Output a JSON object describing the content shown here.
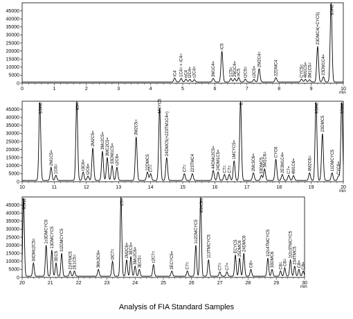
{
  "caption": "Analysis of FIA Standard Samples",
  "chart_data": [
    {
      "type": "line",
      "xunit": "min",
      "xlim": [
        0,
        10
      ],
      "xticks": [
        0,
        1,
        2,
        3,
        4,
        5,
        6,
        7,
        8,
        9,
        10
      ],
      "ylim": [
        0,
        50000
      ],
      "yticks": [
        0,
        5000,
        10000,
        15000,
        20000,
        25000,
        30000,
        35000,
        40000,
        45000
      ],
      "baseline": 800,
      "peaks": [
        {
          "x": 4.75,
          "y": 3200,
          "label": "iC4"
        },
        {
          "x": 4.95,
          "y": 3000,
          "label": "1C4= + iC4="
        },
        {
          "x": 5.1,
          "y": 2600,
          "label": "nC4"
        },
        {
          "x": 5.22,
          "y": 2400,
          "label": "t2C4="
        },
        {
          "x": 5.36,
          "y": 2200,
          "label": "c2C4="
        },
        {
          "x": 5.95,
          "y": 3000,
          "label": "3M1C4="
        },
        {
          "x": 6.22,
          "y": 20000,
          "label": "iC5"
        },
        {
          "x": 6.5,
          "y": 3000,
          "label": "1C5="
        },
        {
          "x": 6.62,
          "y": 3000,
          "label": "2M1C4="
        },
        {
          "x": 6.74,
          "y": 3500,
          "label": "nC5"
        },
        {
          "x": 6.95,
          "y": 2600,
          "label": "t2C5="
        },
        {
          "x": 7.22,
          "y": 2400,
          "label": "c2C5="
        },
        {
          "x": 7.38,
          "y": 9000,
          "label": "2M2C4="
        },
        {
          "x": 7.9,
          "y": 3500,
          "label": "22DMC4"
        },
        {
          "x": 8.7,
          "y": 2600,
          "label": "CYC5="
        },
        {
          "x": 8.82,
          "y": 2400,
          "label": "4M1C5="
        },
        {
          "x": 8.95,
          "y": 2200,
          "label": "3M1C5="
        },
        {
          "x": 9.2,
          "y": 23000,
          "label": "23DMC4(+CYC5)"
        },
        {
          "x": 9.38,
          "y": 4000,
          "label": "23DM1C4="
        },
        {
          "x": 9.62,
          "y": 50000,
          "label": "2MC5"
        }
      ]
    },
    {
      "type": "line",
      "xunit": "min",
      "xlim": [
        10,
        20
      ],
      "xticks": [
        10,
        11,
        12,
        13,
        14,
        15,
        16,
        17,
        18,
        19,
        20
      ],
      "ylim": [
        0,
        50000
      ],
      "yticks": [
        0,
        5000,
        10000,
        15000,
        20000,
        25000,
        30000,
        35000,
        40000,
        45000
      ],
      "baseline": 800,
      "peaks": [
        {
          "x": 10.55,
          "y": 50000,
          "label": "3MC5"
        },
        {
          "x": 10.9,
          "y": 9000,
          "label": "2M1C5="
        },
        {
          "x": 11.05,
          "y": 4000,
          "label": "1C6="
        },
        {
          "x": 11.7,
          "y": 50000,
          "label": "nC6"
        },
        {
          "x": 11.9,
          "y": 6000,
          "label": "t3C6="
        },
        {
          "x": 12.05,
          "y": 3500,
          "label": "t2C6="
        },
        {
          "x": 12.2,
          "y": 21000,
          "label": "2M2C5="
        },
        {
          "x": 12.5,
          "y": 19000,
          "label": "3Mc2C5="
        },
        {
          "x": 12.65,
          "y": 15000,
          "label": "3MC2C5="
        },
        {
          "x": 12.8,
          "y": 10000,
          "label": "33DM1C5="
        },
        {
          "x": 12.95,
          "y": 9000,
          "label": "c2C6="
        },
        {
          "x": 13.55,
          "y": 28000,
          "label": "3M2C5="
        },
        {
          "x": 13.9,
          "y": 6000,
          "label": "22DMC5"
        },
        {
          "x": 14.0,
          "y": 5000,
          "label": "C7="
        },
        {
          "x": 14.28,
          "y": 46000,
          "label": "MCYC5"
        },
        {
          "x": 14.5,
          "y": 15000,
          "label": "24DMC5(+223TM1C4=)"
        },
        {
          "x": 15.05,
          "y": 5000,
          "label": "C7="
        },
        {
          "x": 15.3,
          "y": 5000,
          "label": "223TMC4"
        },
        {
          "x": 15.95,
          "y": 7000,
          "label": "44DMc2C5="
        },
        {
          "x": 16.1,
          "y": 6000,
          "label": "24DM1C5="
        },
        {
          "x": 16.3,
          "y": 4500,
          "label": "C7="
        },
        {
          "x": 16.45,
          "y": 4500,
          "label": "C7="
        },
        {
          "x": 16.6,
          "y": 13000,
          "label": "1MCYC5="
        },
        {
          "x": 16.8,
          "y": 50000,
          "label": "B"
        },
        {
          "x": 17.2,
          "y": 5500,
          "label": "2Mc3C6="
        },
        {
          "x": 17.45,
          "y": 4000,
          "label": "33DMC5"
        },
        {
          "x": 17.55,
          "y": 8000,
          "label": "5M1C6="
        },
        {
          "x": 17.9,
          "y": 14000,
          "label": "CYC6"
        },
        {
          "x": 18.1,
          "y": 4500,
          "label": "2E3M1C4="
        },
        {
          "x": 18.3,
          "y": 4000,
          "label": "C7="
        },
        {
          "x": 18.45,
          "y": 3800,
          "label": "4M1C6="
        },
        {
          "x": 18.95,
          "y": 5500,
          "label": "4M2C6="
        },
        {
          "x": 19.15,
          "y": 50000,
          "label": "2MC6"
        },
        {
          "x": 19.35,
          "y": 30000,
          "label": "23DMC5"
        },
        {
          "x": 19.65,
          "y": 5500,
          "label": "11DMCYC5"
        },
        {
          "x": 19.85,
          "y": 3500,
          "label": "CYC6="
        },
        {
          "x": 19.95,
          "y": 50000,
          "label": "3MC6"
        }
      ]
    },
    {
      "type": "line",
      "xunit": "min",
      "xlim": [
        20,
        30
      ],
      "xticks": [
        20,
        21,
        22,
        23,
        24,
        25,
        26,
        27,
        28,
        29,
        30
      ],
      "ylim": [
        0,
        50000
      ],
      "yticks": [
        0,
        5000,
        10000,
        15000,
        20000,
        25000,
        30000,
        35000,
        40000,
        45000
      ],
      "baseline": 800,
      "peaks": [
        {
          "x": 20.05,
          "y": 50000,
          "label": "3MC6"
        },
        {
          "x": 20.4,
          "y": 9000,
          "label": "34DMc2C5="
        },
        {
          "x": 20.85,
          "y": 20000,
          "label": "1c3DMCYC5"
        },
        {
          "x": 21.05,
          "y": 17000,
          "label": "13DMCYC5"
        },
        {
          "x": 21.2,
          "y": 9000,
          "label": "3EC5"
        },
        {
          "x": 21.4,
          "y": 15000,
          "label": "1t2DMCYC5"
        },
        {
          "x": 21.7,
          "y": 4000,
          "label": "224TMC5"
        },
        {
          "x": 21.85,
          "y": 4000,
          "label": "2E1C5="
        },
        {
          "x": 22.7,
          "y": 5000,
          "label": "3Mc3C6="
        },
        {
          "x": 23.2,
          "y": 10000,
          "label": "t3C7="
        },
        {
          "x": 23.5,
          "y": 50000,
          "label": "nC7"
        },
        {
          "x": 23.7,
          "y": 11000,
          "label": "2M2C6="
        },
        {
          "x": 23.85,
          "y": 13000,
          "label": "3EC5="
        },
        {
          "x": 24.0,
          "y": 7000,
          "label": "3Mc2C6="
        },
        {
          "x": 24.15,
          "y": 5000,
          "label": "3EC5="
        },
        {
          "x": 24.65,
          "y": 8000,
          "label": "c2C7="
        },
        {
          "x": 25.3,
          "y": 4000,
          "label": "3ECYC5="
        },
        {
          "x": 25.85,
          "y": 4000,
          "label": "C7="
        },
        {
          "x": 26.15,
          "y": 20000,
          "label": "1c2DMCYC5"
        },
        {
          "x": 26.32,
          "y": 50000,
          "label": "MCYC6"
        },
        {
          "x": 26.6,
          "y": 11000,
          "label": "113TMCYC5"
        },
        {
          "x": 27.0,
          "y": 3500,
          "label": "C7="
        },
        {
          "x": 27.25,
          "y": 3500,
          "label": "C7="
        },
        {
          "x": 27.55,
          "y": 14000,
          "label": "ECYC5"
        },
        {
          "x": 27.7,
          "y": 12000,
          "label": "25DMC6"
        },
        {
          "x": 27.85,
          "y": 15000,
          "label": "24DMC6"
        },
        {
          "x": 28.1,
          "y": 5000,
          "label": "C8="
        },
        {
          "x": 28.7,
          "y": 12000,
          "label": "1t2c4TMCYC5"
        },
        {
          "x": 28.85,
          "y": 5000,
          "label": "33DMC6"
        },
        {
          "x": 29.15,
          "y": 4000,
          "label": "C8="
        },
        {
          "x": 29.3,
          "y": 6000,
          "label": "C8="
        },
        {
          "x": 29.5,
          "y": 11000,
          "label": "1t2c3TMCYC5"
        },
        {
          "x": 29.65,
          "y": 7000,
          "label": "234TMC5"
        },
        {
          "x": 29.8,
          "y": 5000,
          "label": "C8="
        },
        {
          "x": 29.95,
          "y": 4000,
          "label": "C8="
        }
      ]
    }
  ],
  "colors": {
    "trace": "#000000",
    "axis": "#000000",
    "background": "#ffffff"
  }
}
